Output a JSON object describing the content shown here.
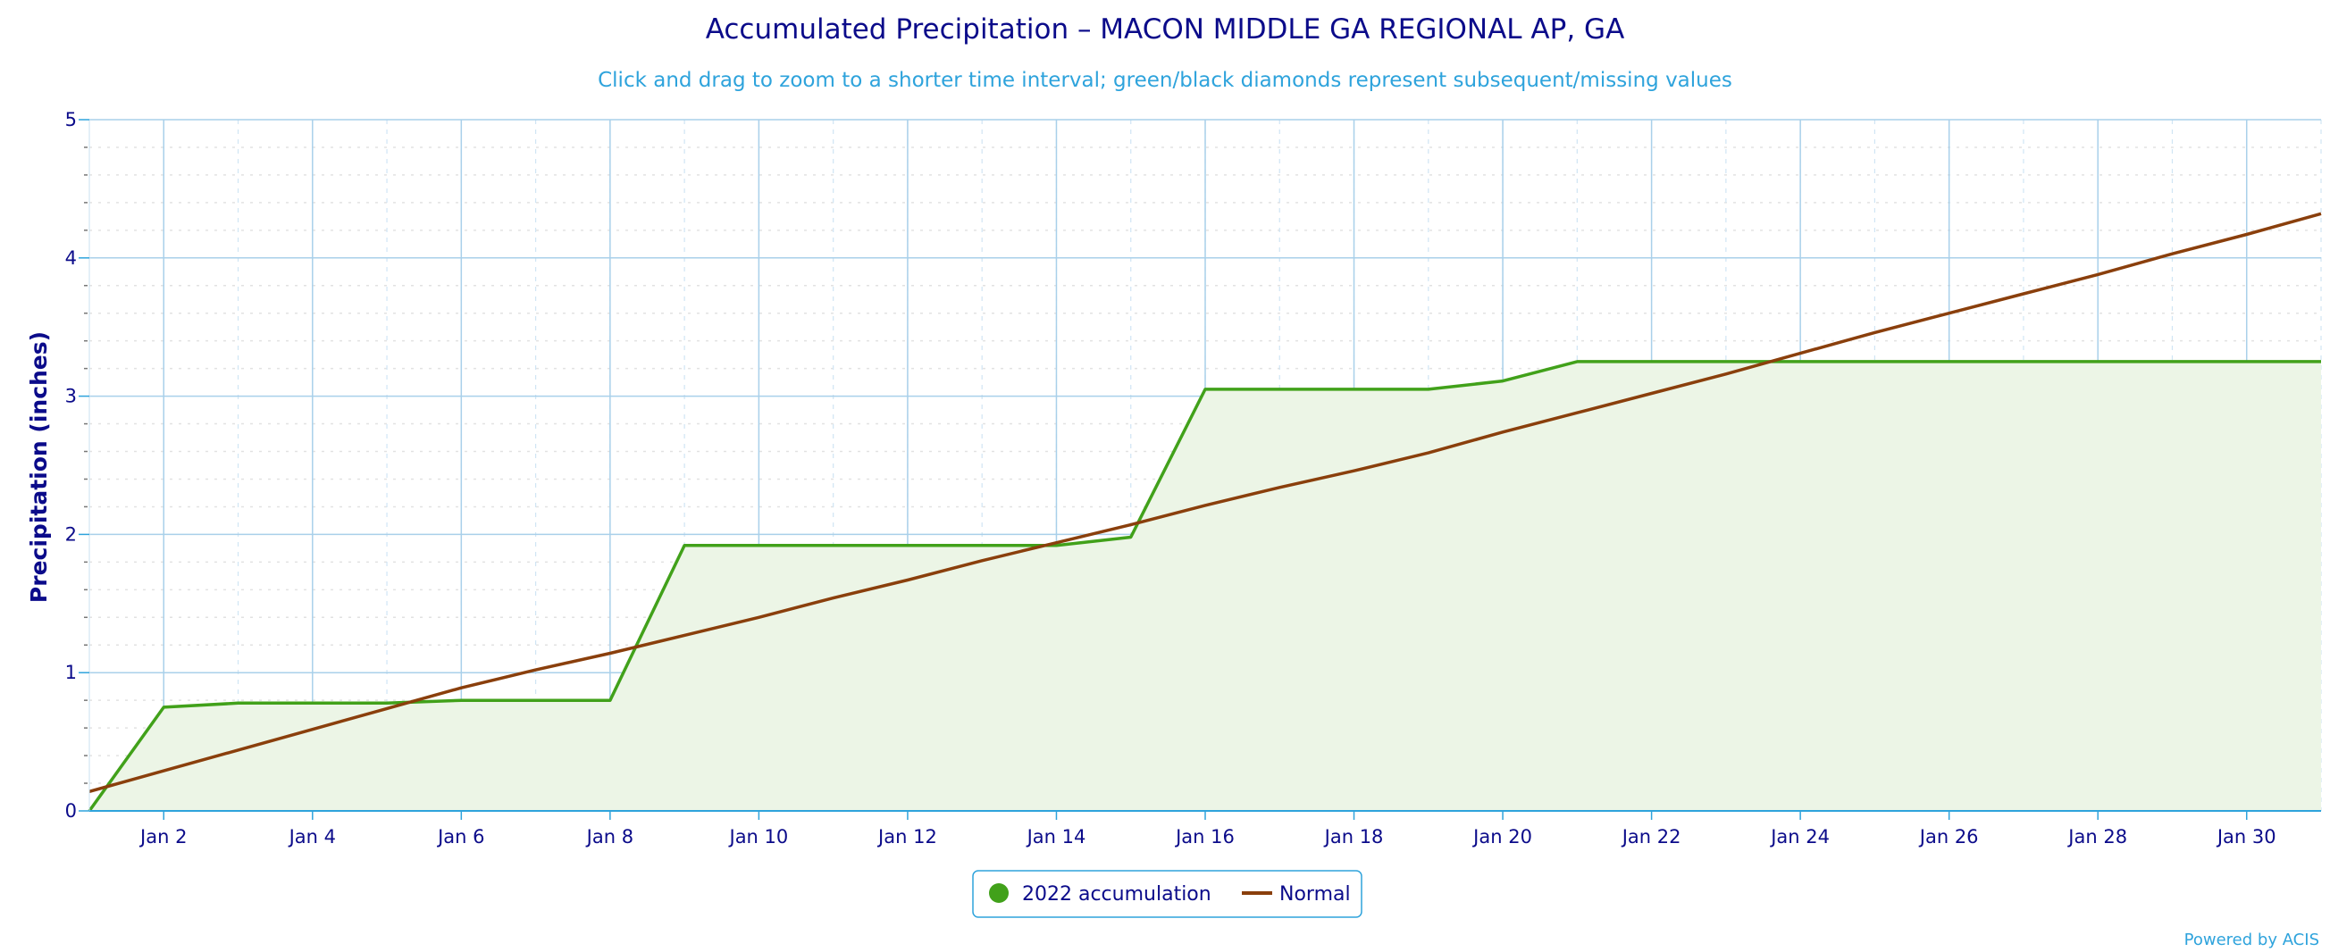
{
  "chart_data": {
    "type": "area",
    "title": "Accumulated Precipitation – MACON MIDDLE GA REGIONAL AP, GA",
    "subtitle": "Click and drag to zoom to a shorter time interval; green/black diamonds represent subsequent/missing values",
    "ylabel": "Precipitation (inches)",
    "xlabel": "",
    "xlim": [
      1,
      31
    ],
    "ylim": [
      0,
      5
    ],
    "grid": true,
    "x_ticks": [
      {
        "day": 2,
        "label": "Jan 2"
      },
      {
        "day": 4,
        "label": "Jan 4"
      },
      {
        "day": 6,
        "label": "Jan 6"
      },
      {
        "day": 8,
        "label": "Jan 8"
      },
      {
        "day": 10,
        "label": "Jan 10"
      },
      {
        "day": 12,
        "label": "Jan 12"
      },
      {
        "day": 14,
        "label": "Jan 14"
      },
      {
        "day": 16,
        "label": "Jan 16"
      },
      {
        "day": 18,
        "label": "Jan 18"
      },
      {
        "day": 20,
        "label": "Jan 20"
      },
      {
        "day": 22,
        "label": "Jan 22"
      },
      {
        "day": 24,
        "label": "Jan 24"
      },
      {
        "day": 26,
        "label": "Jan 26"
      },
      {
        "day": 28,
        "label": "Jan 28"
      },
      {
        "day": 30,
        "label": "Jan 30"
      }
    ],
    "y_ticks": [
      {
        "value": 0,
        "label": "0"
      },
      {
        "value": 1,
        "label": "1"
      },
      {
        "value": 2,
        "label": "2"
      },
      {
        "value": 3,
        "label": "3"
      },
      {
        "value": 4,
        "label": "4"
      },
      {
        "value": 5,
        "label": "5"
      }
    ],
    "series": [
      {
        "name": "2022 accumulation",
        "color": "#41a11a",
        "fill": "#ecf5e6",
        "x": [
          1,
          2,
          3,
          4,
          5,
          6,
          7,
          8,
          9,
          10,
          11,
          12,
          13,
          14,
          15,
          16,
          17,
          18,
          19,
          20,
          21,
          22,
          23,
          24,
          25,
          26,
          27,
          28,
          29,
          30,
          31
        ],
        "values": [
          0.0,
          0.75,
          0.78,
          0.78,
          0.78,
          0.8,
          0.8,
          0.8,
          1.92,
          1.92,
          1.92,
          1.92,
          1.92,
          1.92,
          1.98,
          3.05,
          3.05,
          3.05,
          3.05,
          3.11,
          3.25,
          3.25,
          3.25,
          3.25,
          3.25,
          3.25,
          3.25,
          3.25,
          3.25,
          3.25,
          3.25
        ]
      },
      {
        "name": "Normal",
        "color": "#8a3f0c",
        "x": [
          1,
          2,
          3,
          4,
          5,
          6,
          7,
          8,
          9,
          10,
          11,
          12,
          13,
          14,
          15,
          16,
          17,
          18,
          19,
          20,
          21,
          22,
          23,
          24,
          25,
          26,
          27,
          28,
          29,
          30,
          31
        ],
        "values": [
          0.14,
          0.29,
          0.44,
          0.59,
          0.74,
          0.89,
          1.02,
          1.14,
          1.27,
          1.4,
          1.54,
          1.67,
          1.81,
          1.94,
          2.07,
          2.21,
          2.34,
          2.46,
          2.59,
          2.74,
          2.88,
          3.02,
          3.16,
          3.31,
          3.46,
          3.6,
          3.74,
          3.88,
          4.03,
          4.17,
          4.32
        ]
      }
    ],
    "legend": {
      "placement": "bottom-center",
      "items": [
        {
          "label": "2022 accumulation",
          "symbol": "circle",
          "color": "#41a11a"
        },
        {
          "label": "Normal",
          "symbol": "line",
          "color": "#8a3f0c"
        }
      ]
    },
    "credit": "Powered by ACIS",
    "colors": {
      "title": "#0b0b8a",
      "subtitle": "#2ea3dc",
      "grid_major": "#a9d0ea",
      "grid_minor": "#dcdcdc",
      "axis": "#2ea3dc"
    }
  }
}
